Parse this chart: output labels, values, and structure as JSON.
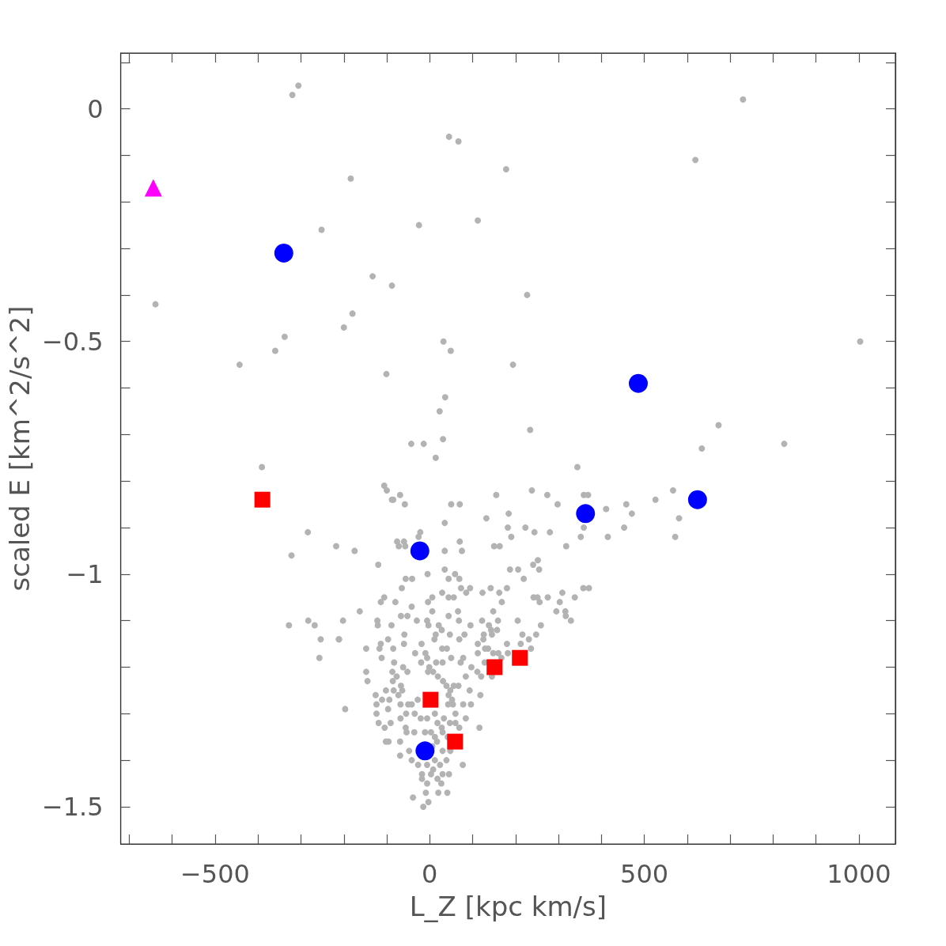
{
  "chart_data": {
    "type": "scatter",
    "xlabel": "L_Z [kpc km/s]",
    "ylabel": "scaled E [km^2/s^2]",
    "xlim": [
      -720,
      1085
    ],
    "ylim": [
      -1.58,
      0.12
    ],
    "xticks": [
      {
        "value": -700,
        "label": null
      },
      {
        "value": -600,
        "label": null
      },
      {
        "value": -500,
        "label": "−500"
      },
      {
        "value": -400,
        "label": null
      },
      {
        "value": -300,
        "label": null
      },
      {
        "value": -200,
        "label": null
      },
      {
        "value": -100,
        "label": null
      },
      0,
      {
        "value": 100,
        "label": null
      },
      {
        "value": 200,
        "label": null
      },
      {
        "value": 300,
        "label": null
      },
      {
        "value": 400,
        "label": null
      },
      500,
      {
        "value": 600,
        "label": null
      },
      {
        "value": 700,
        "label": null
      },
      {
        "value": 800,
        "label": null
      },
      {
        "value": 900,
        "label": null
      },
      1000
    ],
    "yticks": [
      {
        "value": -1.5,
        "label": "−1.5"
      },
      {
        "value": -1.4,
        "label": null
      },
      {
        "value": -1.3,
        "label": null
      },
      {
        "value": -1.2,
        "label": null
      },
      {
        "value": -1.1,
        "label": null
      },
      {
        "value": -1,
        "label": "−1"
      },
      {
        "value": -0.9,
        "label": null
      },
      {
        "value": -0.8,
        "label": null
      },
      {
        "value": -0.7,
        "label": null
      },
      {
        "value": -0.6,
        "label": null
      },
      {
        "value": -0.5,
        "label": "−0.5"
      },
      {
        "value": -0.4,
        "label": null
      },
      {
        "value": -0.3,
        "label": null
      },
      {
        "value": -0.2,
        "label": null
      },
      {
        "value": -0.1,
        "label": null
      },
      0,
      {
        "value": 0.1,
        "label": null
      }
    ],
    "grid": false,
    "series": [
      {
        "type": "scatter",
        "marker": "circle",
        "color": "#b3b3b3",
        "x": [
          14,
          -106,
          -100,
          -69,
          -88,
          -85,
          -58,
          50,
          70,
          155,
          238,
          274,
          298,
          344,
          359,
          369,
          411,
          458,
          471,
          453,
          415,
          352,
          318,
          359,
          132,
          184,
          182,
          190,
          223,
          244,
          280,
          150,
          163,
          35,
          -22,
          -26,
          -76,
          -60,
          -72,
          -57,
          70,
          75,
          35,
          -218,
          -175,
          -120,
          -5,
          35,
          44,
          59,
          69,
          -56,
          -41,
          -65,
          73,
          94,
          85,
          29,
          44,
          56,
          6,
          -4,
          123,
          142,
          162,
          180,
          168,
          187,
          206,
          219,
          241,
          252,
          255,
          242,
          251,
          256,
          275,
          309,
          338,
          358,
          371,
          295,
          303,
          316,
          317,
          329,
          259,
          248,
          231,
          216,
          212,
          236,
          205,
          180,
          -114,
          -106,
          -80,
          -163,
          -202,
          -211,
          -122,
          -121,
          -89,
          -97,
          -59,
          -60,
          -85,
          -114,
          -117,
          -112,
          -148,
          -67,
          -42,
          -52,
          -30,
          -6,
          -3,
          6,
          21,
          28,
          44,
          66,
          68,
          95,
          122,
          138,
          148,
          159,
          143,
          157,
          126,
          125,
          145,
          112,
          129,
          136,
          112,
          148,
          160,
          182,
          167,
          128,
          145,
          111,
          97,
          120,
          118,
          93,
          84,
          67,
          56,
          39,
          48,
          31,
          19,
          8,
          -4,
          -20,
          -34,
          -19,
          11,
          14,
          47,
          81,
          69,
          29,
          40,
          50,
          78,
          72,
          -1,
          15,
          30,
          -6,
          -10,
          -83,
          -62,
          -87,
          -52,
          -77,
          -148,
          -145,
          -86,
          -67,
          -64,
          -84,
          -73,
          -102,
          -126,
          -124,
          -111,
          -94,
          -97,
          -124,
          -197,
          -28,
          -50,
          -42,
          -68,
          -55,
          -35,
          -68,
          -91,
          -119,
          -105,
          -56,
          -54,
          -36,
          -21,
          -6,
          12,
          18,
          33,
          47,
          60,
          43,
          54,
          60,
          78,
          96,
          84,
          52,
          44,
          69,
          116,
          28,
          3,
          -11,
          12,
          30,
          42,
          17,
          6,
          -102,
          -96,
          -69,
          -69,
          -48,
          -42,
          -27,
          -18,
          -6,
          12,
          24,
          39,
          30,
          48,
          77,
          -18,
          3,
          18,
          30,
          45,
          -6,
          -9,
          -39,
          -3,
          20,
          41,
          -15,
          8,
          27,
          -306,
          -320,
          730,
          45,
          67,
          619,
          178,
          -184,
          112,
          -252,
          -25,
          -133,
          -88,
          227,
          -639,
          -180,
          -200,
          -338,
          -360,
          -443,
          32,
          49,
          194,
          -101,
          36,
          23,
          673,
          234,
          -43,
          -14,
          31,
          826,
          634,
          -391,
          1003,
          -284,
          -322,
          -328,
          -283,
          -268,
          -254,
          -257,
          -212,
          526,
          567,
          581,
          572
        ],
        "values": [
          -0.75,
          -0.81,
          -0.82,
          -0.83,
          -0.84,
          -0.84,
          -0.85,
          -0.85,
          -0.85,
          -0.83,
          -0.82,
          -0.83,
          -0.85,
          -0.77,
          -0.83,
          -0.83,
          -0.86,
          -0.85,
          -0.87,
          -0.9,
          -0.92,
          -0.92,
          -0.94,
          -0.9,
          -0.88,
          -0.87,
          -0.9,
          -0.92,
          -0.9,
          -0.91,
          -0.91,
          -0.94,
          -0.94,
          -0.89,
          -0.91,
          -0.92,
          -0.93,
          -0.93,
          -0.94,
          -0.94,
          -0.93,
          -0.95,
          -0.95,
          -0.94,
          -0.95,
          -0.98,
          -1,
          -0.99,
          -1.01,
          -1,
          -1.01,
          -1.01,
          -1.01,
          -1.03,
          -1.03,
          -1.03,
          -1.04,
          -1.04,
          -1.05,
          -1.05,
          -1.05,
          -1.06,
          -1.04,
          -1.03,
          -1.04,
          -1.03,
          -1.06,
          -0.99,
          -0.99,
          -1.01,
          -0.98,
          -0.97,
          -0.99,
          -1.05,
          -1.05,
          -1.06,
          -1.05,
          -1.04,
          -1.05,
          -1.03,
          -1.03,
          -1.08,
          -1.06,
          -1.08,
          -1.09,
          -1.1,
          -1.11,
          -1.13,
          -1.14,
          -1.13,
          -1.15,
          -1.16,
          -1.1,
          -1.15,
          -1.06,
          -1.05,
          -1.06,
          -1.08,
          -1.1,
          -1.14,
          -1.1,
          -1.11,
          -1.11,
          -1.14,
          -1.13,
          -1.15,
          -1.16,
          -1.15,
          -1.16,
          -1.18,
          -1.16,
          -1.09,
          -1.07,
          -1.09,
          -1.1,
          -1.1,
          -1.11,
          -1.08,
          -1.11,
          -1.12,
          -1.09,
          -1.08,
          -1.1,
          -1.11,
          -1.1,
          -1.11,
          -1.08,
          -1.1,
          -1.12,
          -1.12,
          -1.13,
          -1.14,
          -1.13,
          -1.15,
          -1.16,
          -1.16,
          -1.17,
          -1.17,
          -1.17,
          -1.17,
          -1.18,
          -1.19,
          -1.22,
          -1.21,
          -1.2,
          -1.22,
          -1.26,
          -1.25,
          -1.22,
          -1.24,
          -1.24,
          -1.24,
          -1.25,
          -1.23,
          -1.22,
          -1.21,
          -1.21,
          -1.19,
          -1.17,
          -1.15,
          -1.14,
          -1.13,
          -1.13,
          -1.13,
          -1.14,
          -1.16,
          -1.16,
          -1.18,
          -1.18,
          -1.19,
          -1.2,
          -1.19,
          -1.19,
          -1.18,
          -1.17,
          -1.19,
          -1.2,
          -1.21,
          -1.21,
          -1.22,
          -1.21,
          -1.23,
          -1.23,
          -1.24,
          -1.25,
          -1.25,
          -1.26,
          -1.25,
          -1.26,
          -1.28,
          -1.27,
          -1.27,
          -1.29,
          -1.3,
          -1.29,
          -1.27,
          -1.28,
          -1.28,
          -1.28,
          -1.3,
          -1.3,
          -1.31,
          -1.32,
          -1.32,
          -1.33,
          -1.33,
          -1.34,
          -1.34,
          -1.31,
          -1.31,
          -1.3,
          -1.32,
          -1.31,
          -1.32,
          -1.32,
          -1.28,
          -1.28,
          -1.3,
          -1.28,
          -1.28,
          -1.31,
          -1.27,
          -1.26,
          -1.33,
          -1.33,
          -1.33,
          -1.34,
          -1.34,
          -1.35,
          -1.34,
          -1.35,
          -1.36,
          -1.37,
          -1.36,
          -1.36,
          -1.36,
          -1.39,
          -1.38,
          -1.4,
          -1.41,
          -1.43,
          -1.41,
          -1.4,
          -1.41,
          -1.4,
          -1.38,
          -1.38,
          -1.41,
          -1.44,
          -1.43,
          -1.44,
          -1.43,
          -1.43,
          -1.45,
          -1.47,
          -1.48,
          -1.49,
          -1.47,
          -1.47,
          -1.5,
          -1.42,
          -1.45,
          0.05,
          0.03,
          0.02,
          -0.06,
          -0.07,
          -0.11,
          -0.13,
          -0.15,
          -0.24,
          -0.26,
          -0.25,
          -0.36,
          -0.38,
          -0.4,
          -0.42,
          -0.44,
          -0.47,
          -0.49,
          -0.52,
          -0.55,
          -0.5,
          -0.52,
          -0.55,
          -0.57,
          -0.62,
          -0.65,
          -0.68,
          -0.69,
          -0.72,
          -0.72,
          -0.71,
          -0.72,
          -0.73,
          -0.77,
          -0.5,
          -0.91,
          -0.96,
          -1.11,
          -1.1,
          -1.11,
          -1.14,
          -1.18,
          -1.14,
          -0.84,
          -0.82,
          -0.88,
          -0.92
        ]
      },
      {
        "type": "scatter",
        "marker": "circle",
        "color": "#0000ff",
        "x": [
          -340,
          486,
          363,
          624,
          -23,
          -11
        ],
        "values": [
          -0.31,
          -0.59,
          -0.87,
          -0.84,
          -0.95,
          -1.38
        ]
      },
      {
        "type": "scatter",
        "marker": "square",
        "color": "#ff0000",
        "x": [
          -390,
          2,
          59,
          151,
          210
        ],
        "values": [
          -0.84,
          -1.27,
          -1.36,
          -1.2,
          -1.18
        ]
      },
      {
        "type": "scatter",
        "marker": "triangle",
        "color": "#ff00ff",
        "x": [
          -644
        ],
        "values": [
          -0.17
        ]
      }
    ]
  }
}
